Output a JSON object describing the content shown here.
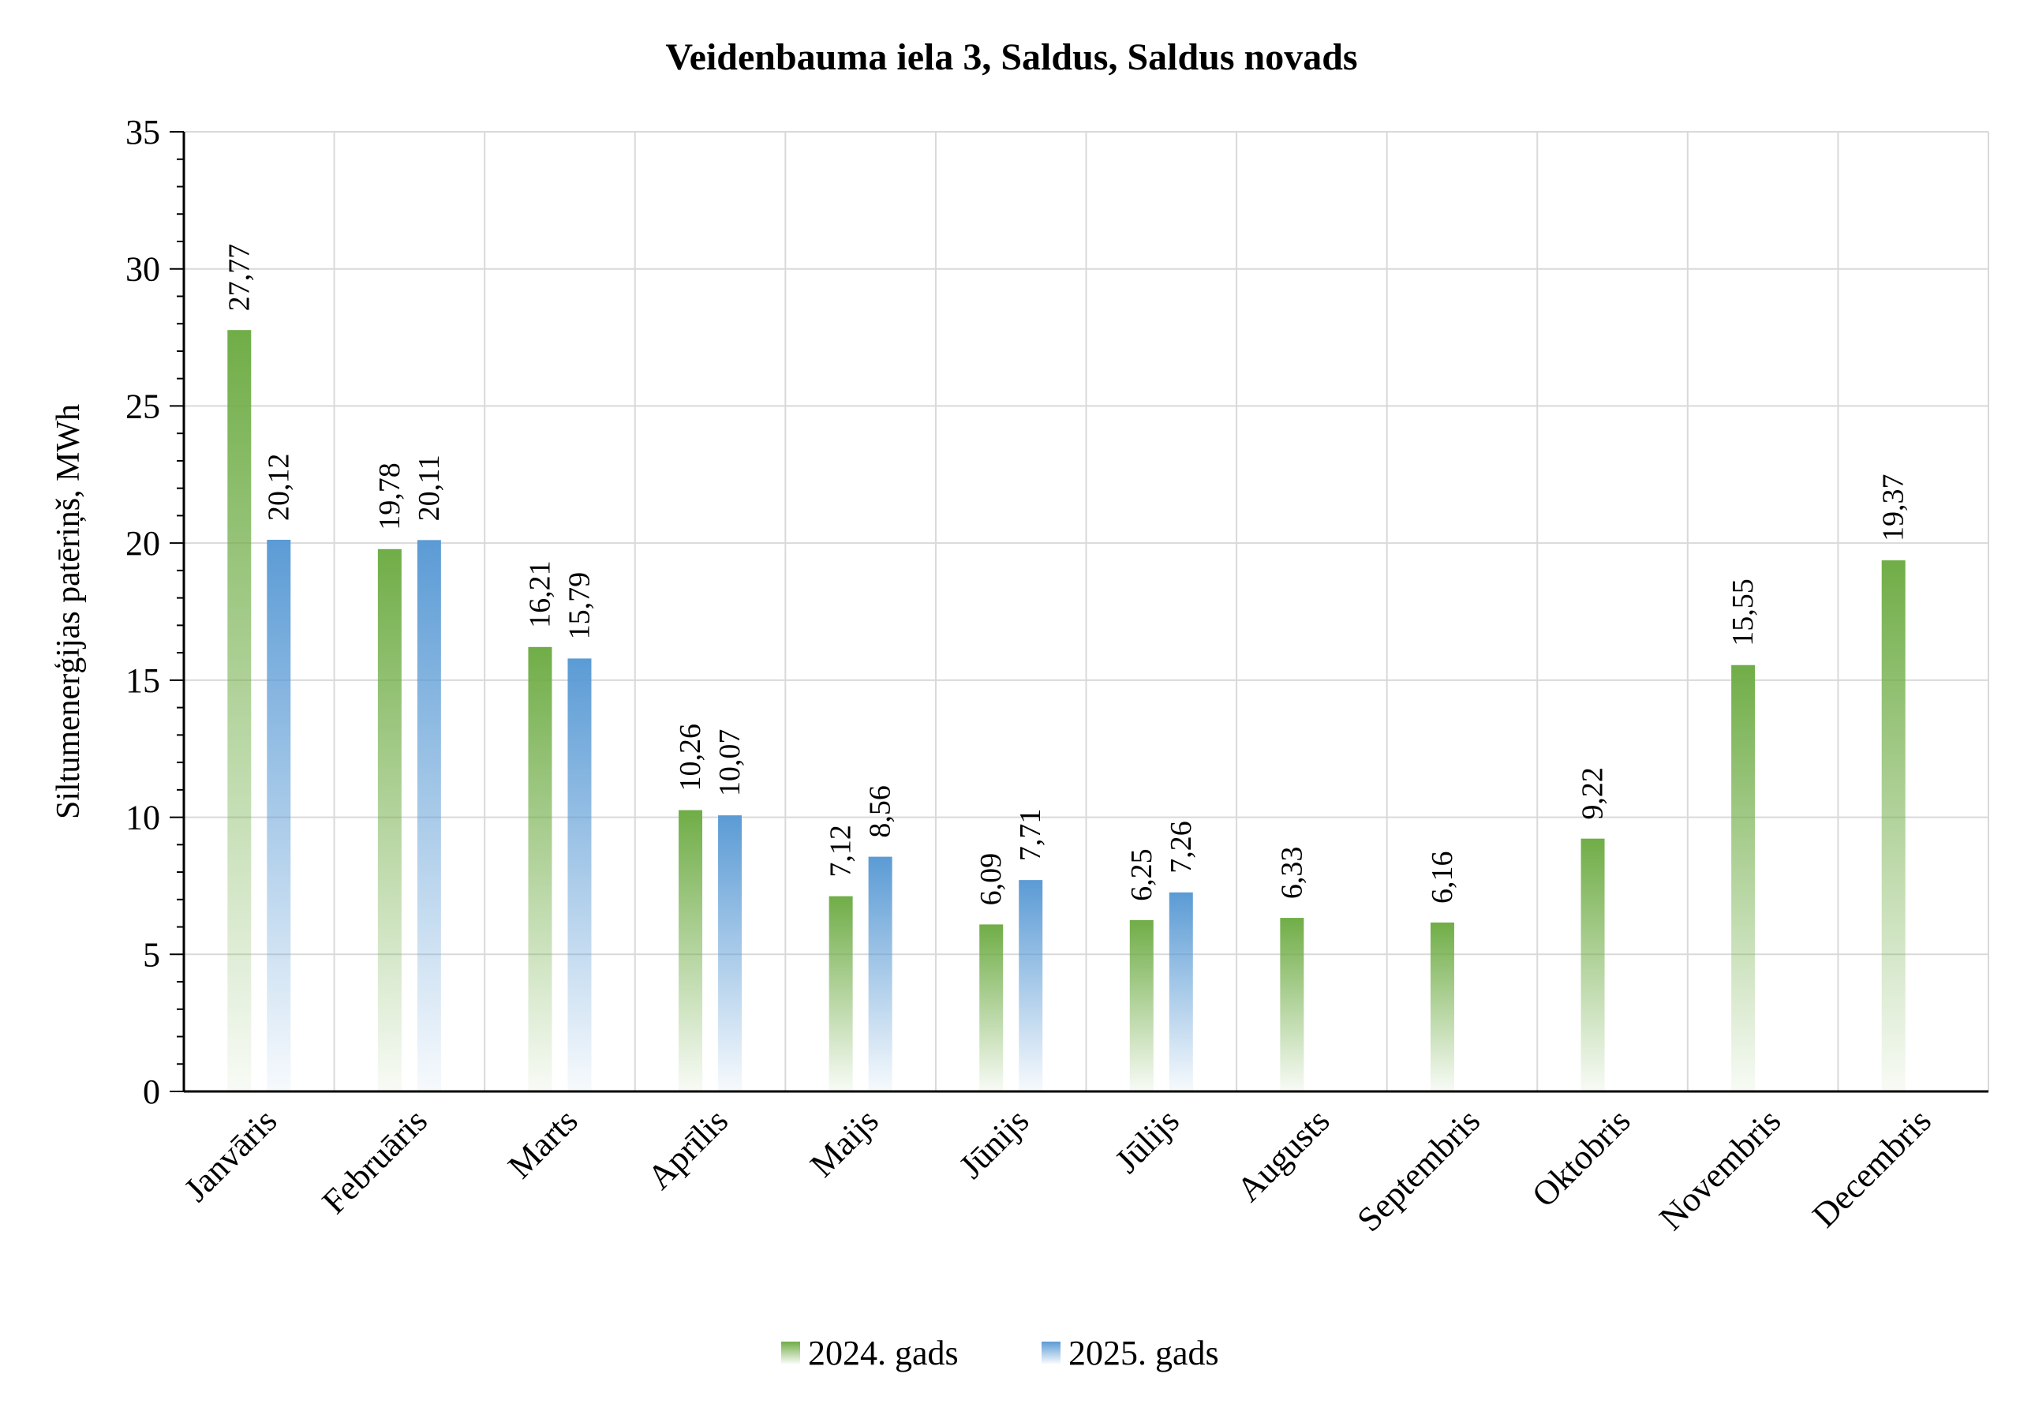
{
  "chart_data": {
    "type": "bar",
    "title": "Veidenbauma iela 3, Saldus, Saldus novads",
    "xlabel": "",
    "ylabel": "Siltumenerģijas patēriņš, MWh",
    "ylim": [
      0,
      35
    ],
    "y_ticks": [
      "0",
      "5",
      "10",
      "15",
      "20",
      "25",
      "30",
      "35"
    ],
    "grid": true,
    "legend_position": "bottom",
    "categories": [
      "Janvāris",
      "Februāris",
      "Marts",
      "Aprīlis",
      "Maijs",
      "Jūnijs",
      "Jūlijs",
      "Augusts",
      "Septembris",
      "Oktobris",
      "Novembris",
      "Decembris"
    ],
    "series": [
      {
        "name": "2024. gads",
        "color": "#70ad47",
        "values": [
          27.77,
          19.78,
          16.21,
          10.26,
          7.12,
          6.09,
          6.25,
          6.33,
          6.16,
          9.22,
          15.55,
          19.37
        ],
        "labels": [
          "27,77",
          "19,78",
          "16,21",
          "10,26",
          "7,12",
          "6,09",
          "6,25",
          "6,33",
          "6,16",
          "9,22",
          "15,55",
          "19,37"
        ]
      },
      {
        "name": "2025. gads",
        "color": "#5b9bd5",
        "values": [
          20.12,
          20.11,
          15.79,
          10.07,
          8.56,
          7.71,
          7.26,
          null,
          null,
          null,
          null,
          null
        ],
        "labels": [
          "20,12",
          "20,11",
          "15,79",
          "10,07",
          "8,56",
          "7,71",
          "7,26",
          "",
          "",
          "",
          "",
          ""
        ]
      }
    ]
  }
}
